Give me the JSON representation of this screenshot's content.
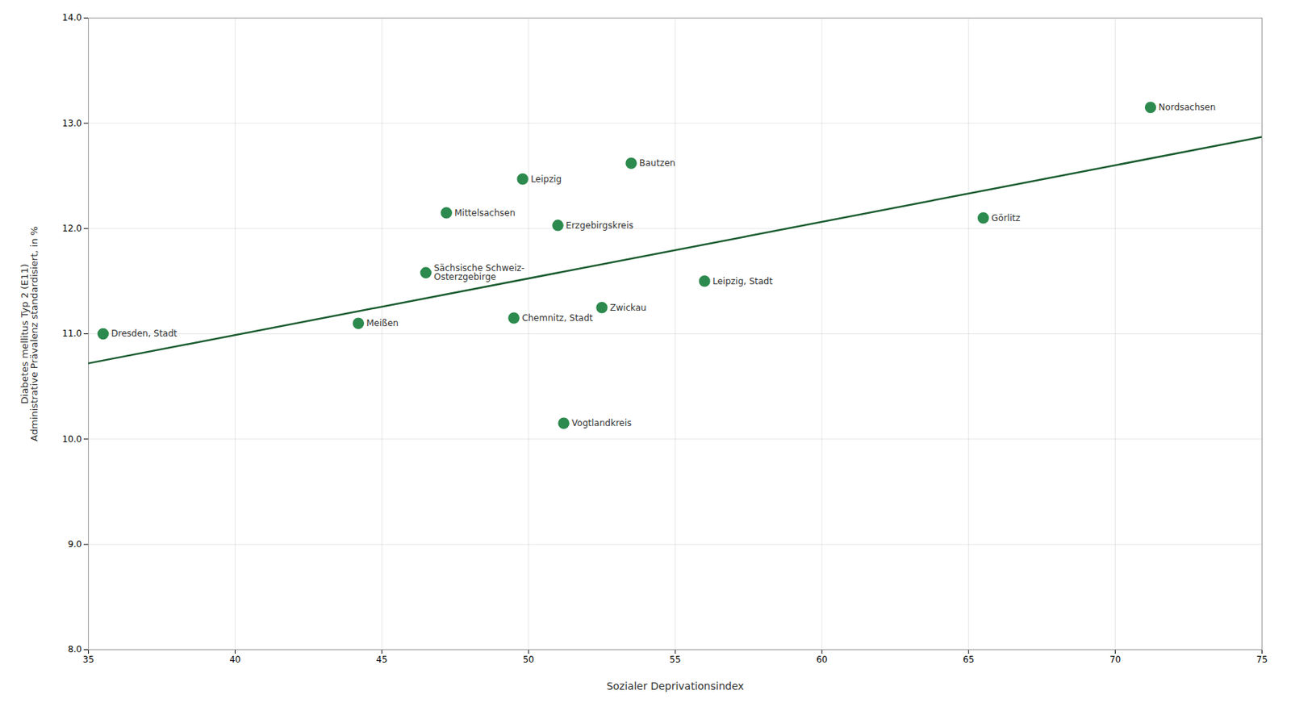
{
  "chart_data": {
    "type": "scatter",
    "xlabel": "Sozialer Deprivationsindex",
    "ylabel": "Diabetes mellitus Typ 2 (E11)\nAdministrative Prävalenz standardisiert, in %",
    "labels": [
      "Dresden, Stadt",
      "Meißen",
      "Sächsische Schweiz-\nOsterzgebirge",
      "Mittelsachsen",
      "Chemnitz, Stadt",
      "Leipzig",
      "Erzgebirgskreis",
      "Vogtlandkreis",
      "Zwickau",
      "Bautzen",
      "Leipzig, Stadt",
      "Görlitz",
      "Nordsachsen"
    ],
    "x": [
      35.5,
      44.2,
      46.5,
      47.2,
      49.5,
      49.8,
      51.0,
      51.2,
      52.5,
      53.5,
      56.0,
      65.5,
      71.2
    ],
    "values": [
      11.0,
      11.1,
      11.58,
      12.15,
      11.15,
      12.47,
      12.03,
      10.15,
      11.25,
      12.62,
      11.5,
      12.1,
      13.15
    ],
    "color": "#2d8a4e",
    "regression_line": {
      "type": "line",
      "x": [
        35.0,
        75.0
      ],
      "values": [
        10.72,
        12.87
      ],
      "color": "#1a5c30"
    },
    "xlim": [
      35,
      75
    ],
    "ylim": [
      8,
      14
    ],
    "xticks": [
      35,
      40,
      45,
      50,
      55,
      60,
      65,
      70,
      75
    ],
    "yticks": [
      8,
      9,
      10,
      11,
      12,
      13,
      14
    ],
    "grid": true
  }
}
